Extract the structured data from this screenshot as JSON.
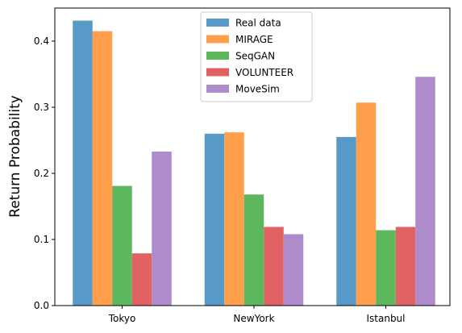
{
  "chart_data": {
    "type": "bar",
    "title": "",
    "xlabel": "",
    "ylabel": "Return Probability",
    "categories": [
      "Tokyo",
      "NewYork",
      "Istanbul"
    ],
    "ylim": [
      0,
      0.45
    ],
    "yticks": [
      0.0,
      0.1,
      0.2,
      0.3,
      0.4
    ],
    "ytick_labels": [
      "0.0",
      "0.1",
      "0.2",
      "0.3",
      "0.4"
    ],
    "grid": false,
    "legend_position": "top-center",
    "series": [
      {
        "name": "Real data",
        "color": "#5799c7",
        "values": [
          0.431,
          0.26,
          0.255
        ]
      },
      {
        "name": "MIRAGE",
        "color": "#ff9f4b",
        "values": [
          0.415,
          0.262,
          0.307
        ]
      },
      {
        "name": "SeqGAN",
        "color": "#5db75d",
        "values": [
          0.181,
          0.168,
          0.114
        ]
      },
      {
        "name": "VOLUNTEER",
        "color": "#e06263",
        "values": [
          0.079,
          0.119,
          0.119
        ]
      },
      {
        "name": "MoveSim",
        "color": "#ae8bcb",
        "values": [
          0.233,
          0.108,
          0.346
        ]
      }
    ]
  }
}
